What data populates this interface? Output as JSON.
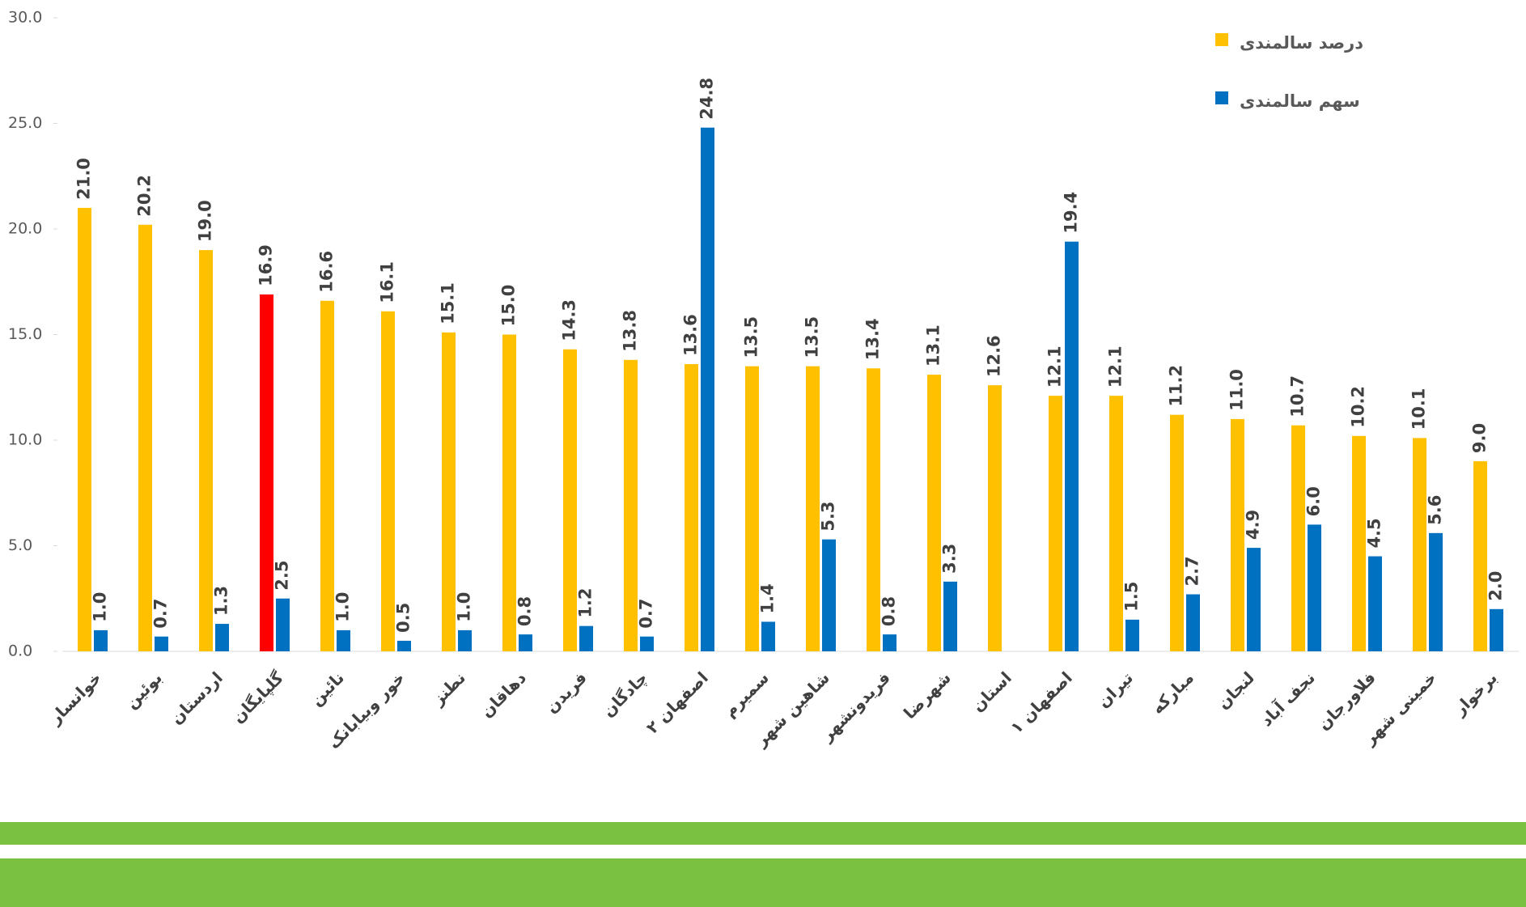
{
  "chart_data": {
    "type": "bar",
    "categories": [
      "خوانسار",
      "بوئین",
      "اردستان",
      "گلپایگان",
      "نائین",
      "خور وبیابانک",
      "نطنز",
      "دهاقان",
      "فریدن",
      "چادگان",
      "اصفهان ۲",
      "سمیرم",
      "شاهین شهر",
      "فریدونشهر",
      "شهرضا",
      "استان",
      "اصفهان ۱",
      "تیران",
      "مبارکه",
      "لنجان",
      "نجف آباد",
      "فلاورجان",
      "خمینی شهر",
      "برخوار"
    ],
    "series": [
      {
        "name": "درصد سالمندی",
        "color": "#FFC000",
        "colors": [
          "#FFC000",
          "#FFC000",
          "#FFC000",
          "#FF0000",
          "#FFC000",
          "#FFC000",
          "#FFC000",
          "#FFC000",
          "#FFC000",
          "#FFC000",
          "#FFC000",
          "#FFC000",
          "#FFC000",
          "#FFC000",
          "#FFC000",
          "#FFC000",
          "#FFC000",
          "#FFC000",
          "#FFC000",
          "#FFC000",
          "#FFC000",
          "#FFC000",
          "#FFC000",
          "#FFC000"
        ],
        "values": [
          21.0,
          20.2,
          19.0,
          16.9,
          16.6,
          16.1,
          15.1,
          15.0,
          14.3,
          13.8,
          13.6,
          13.5,
          13.5,
          13.4,
          13.1,
          12.6,
          12.1,
          12.1,
          11.2,
          11.0,
          10.7,
          10.2,
          10.1,
          9.0
        ],
        "value_labels": [
          "21.0",
          "20.2",
          "19.0",
          "16.9",
          "16.6",
          "16.1",
          "15.1",
          "15.0",
          "14.3",
          "13.8",
          "13.6",
          "13.5",
          "13.5",
          "13.4",
          "13.1",
          "12.6",
          "12.1",
          "12.1",
          "11.2",
          "11.0",
          "10.7",
          "10.2",
          "10.1",
          "9.0"
        ]
      },
      {
        "name": "سهم سالمندی",
        "color": "#0070C0",
        "values": [
          1.0,
          0.7,
          1.3,
          2.5,
          1.0,
          0.5,
          1.0,
          0.8,
          1.2,
          0.7,
          24.8,
          1.4,
          5.3,
          0.8,
          3.3,
          null,
          19.4,
          1.5,
          2.7,
          4.9,
          6.0,
          4.5,
          5.6,
          2.0
        ],
        "value_labels": [
          "1.0",
          "0.7",
          "1.3",
          "2.5",
          "1.0",
          "0.5",
          "1.0",
          "0.8",
          "1.2",
          "0.7",
          "24.8",
          "1.4",
          "5.3",
          "0.8",
          "3.3",
          null,
          "19.4",
          "1.5",
          "2.7",
          "4.9",
          "6.0",
          "4.5",
          "5.6",
          "2.0"
        ]
      }
    ],
    "ylim": [
      0,
      30
    ],
    "yticks": [
      {
        "value": 0,
        "label": "0.0"
      },
      {
        "value": 5,
        "label": "5.0"
      },
      {
        "value": 10,
        "label": "10.0"
      },
      {
        "value": 15,
        "label": "15.0"
      },
      {
        "value": 20,
        "label": "20.0"
      },
      {
        "value": 25,
        "label": "25.0"
      },
      {
        "value": 30,
        "label": "30.0"
      }
    ],
    "grid": false,
    "legend": "top-right"
  }
}
